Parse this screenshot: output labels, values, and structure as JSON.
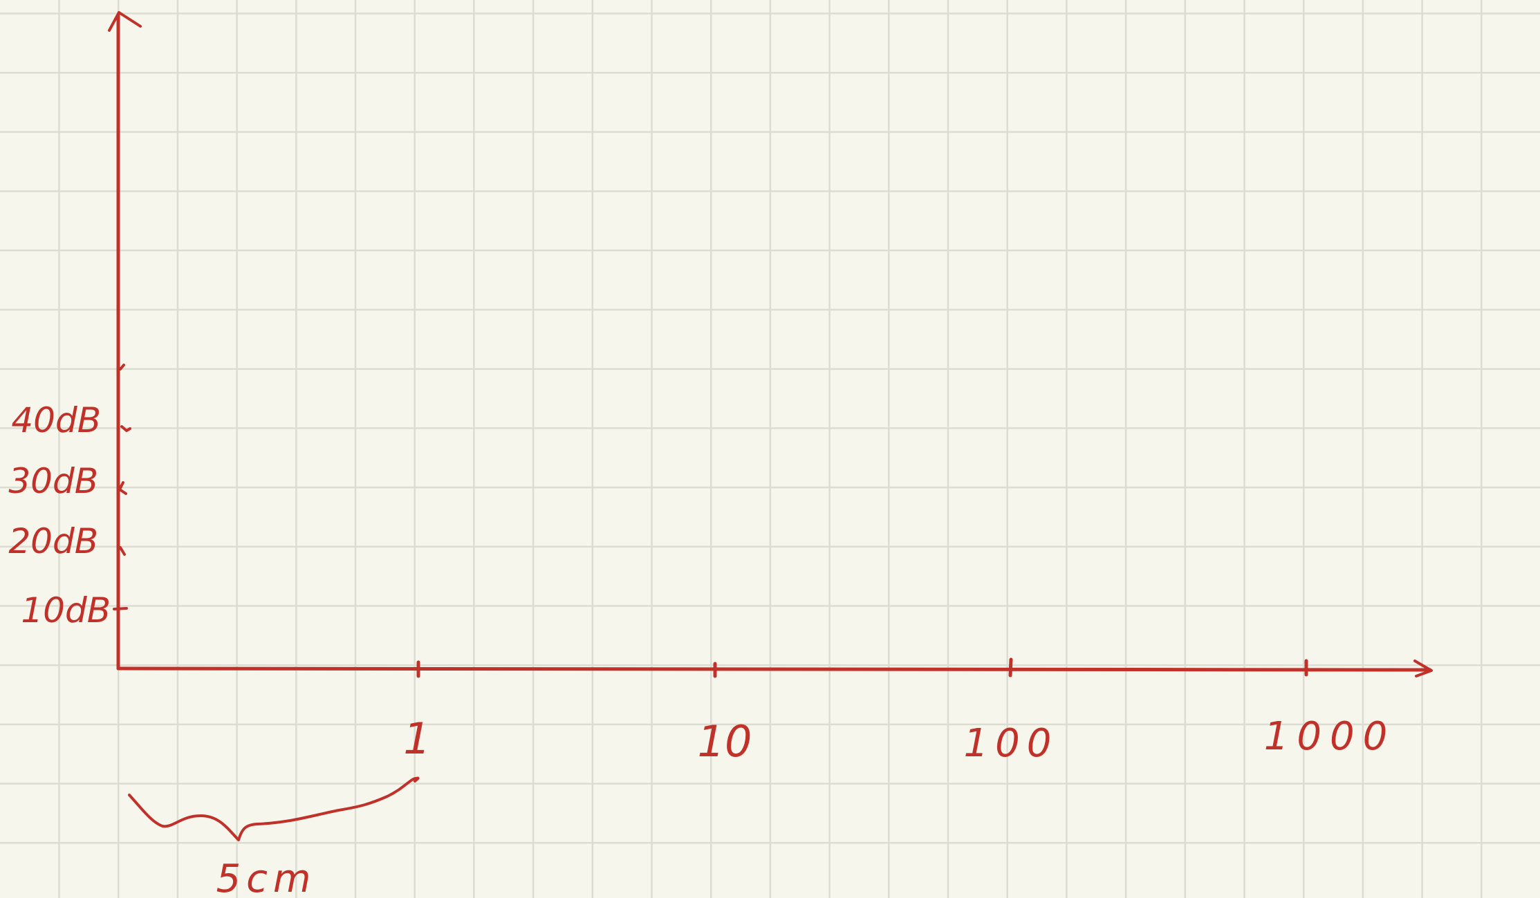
{
  "chart_data": {
    "type": "diagram",
    "x_axis": {
      "scale": "log",
      "tick_labels": [
        "1",
        "10",
        "100",
        "1000"
      ]
    },
    "y_axis": {
      "tick_labels": [
        "10dB",
        "20dB",
        "30dB",
        "40dB"
      ]
    },
    "annotation": {
      "text": "5cm"
    }
  },
  "colors": {
    "ink": "#c0312a",
    "paper": "#f7f6ec",
    "grid": "#dcddd2"
  }
}
